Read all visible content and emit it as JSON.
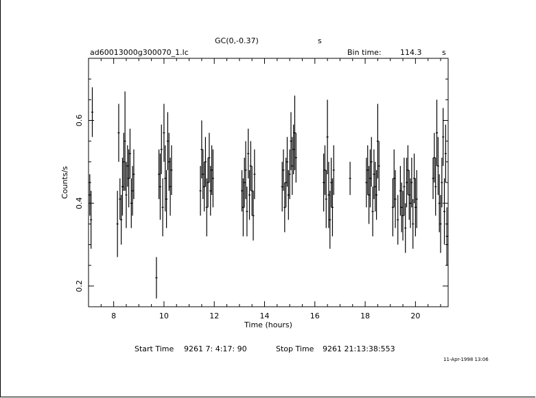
{
  "header": {
    "title": "GC(0,-0.37)",
    "title_unit": "s",
    "file_name": "ad60013000g300070_1.lc",
    "bin_time_label": "Bin time:",
    "bin_time_value": "114.3",
    "bin_time_unit": "s"
  },
  "footer": {
    "start_label": "Start Time",
    "start_value": "9261  7: 4:17: 90",
    "stop_label": "Stop Time",
    "stop_value": "9261 21:13:38:553",
    "timestamp": "11-Apr-1998 13:06"
  },
  "chart_data": {
    "type": "scatter",
    "style": "error-bars",
    "xlabel": "Time (hours)",
    "ylabel": "Counts/s",
    "xlim": [
      7.0,
      21.3
    ],
    "ylim": [
      0.15,
      0.75
    ],
    "xticks": [
      8,
      10,
      12,
      14,
      16,
      18,
      20
    ],
    "yticks": [
      0.2,
      0.4,
      0.6
    ],
    "grid": false,
    "points": [
      [
        7.05,
        0.42,
        0.05
      ],
      [
        7.1,
        0.36,
        0.07
      ],
      [
        7.15,
        0.62,
        0.06
      ],
      [
        8.15,
        0.35,
        0.08
      ],
      [
        8.2,
        0.57,
        0.07
      ],
      [
        8.25,
        0.41,
        0.05
      ],
      [
        8.3,
        0.36,
        0.06
      ],
      [
        8.35,
        0.44,
        0.07
      ],
      [
        8.4,
        0.5,
        0.07
      ],
      [
        8.45,
        0.55,
        0.12
      ],
      [
        8.5,
        0.42,
        0.08
      ],
      [
        8.55,
        0.49,
        0.05
      ],
      [
        8.6,
        0.46,
        0.07
      ],
      [
        8.65,
        0.52,
        0.06
      ],
      [
        8.7,
        0.4,
        0.06
      ],
      [
        8.75,
        0.43,
        0.06
      ],
      [
        8.8,
        0.47,
        0.06
      ],
      [
        9.7,
        0.22,
        0.05
      ],
      [
        9.8,
        0.47,
        0.06
      ],
      [
        9.85,
        0.44,
        0.08
      ],
      [
        9.9,
        0.53,
        0.06
      ],
      [
        9.95,
        0.39,
        0.07
      ],
      [
        10.0,
        0.57,
        0.07
      ],
      [
        10.05,
        0.46,
        0.08
      ],
      [
        10.1,
        0.41,
        0.07
      ],
      [
        10.15,
        0.55,
        0.07
      ],
      [
        10.2,
        0.5,
        0.07
      ],
      [
        10.25,
        0.44,
        0.07
      ],
      [
        10.3,
        0.48,
        0.06
      ],
      [
        11.45,
        0.43,
        0.06
      ],
      [
        11.5,
        0.53,
        0.07
      ],
      [
        11.55,
        0.47,
        0.06
      ],
      [
        11.6,
        0.44,
        0.06
      ],
      [
        11.65,
        0.5,
        0.06
      ],
      [
        11.7,
        0.39,
        0.07
      ],
      [
        11.75,
        0.45,
        0.06
      ],
      [
        11.8,
        0.51,
        0.06
      ],
      [
        11.85,
        0.43,
        0.06
      ],
      [
        11.9,
        0.48,
        0.06
      ],
      [
        11.95,
        0.46,
        0.07
      ],
      [
        13.1,
        0.43,
        0.05
      ],
      [
        13.15,
        0.39,
        0.07
      ],
      [
        13.2,
        0.45,
        0.06
      ],
      [
        13.25,
        0.48,
        0.07
      ],
      [
        13.3,
        0.38,
        0.06
      ],
      [
        13.35,
        0.52,
        0.06
      ],
      [
        13.4,
        0.42,
        0.06
      ],
      [
        13.45,
        0.49,
        0.06
      ],
      [
        13.5,
        0.43,
        0.06
      ],
      [
        13.55,
        0.37,
        0.06
      ],
      [
        13.6,
        0.47,
        0.06
      ],
      [
        14.7,
        0.44,
        0.06
      ],
      [
        14.75,
        0.48,
        0.05
      ],
      [
        14.8,
        0.39,
        0.06
      ],
      [
        14.85,
        0.45,
        0.06
      ],
      [
        14.9,
        0.5,
        0.06
      ],
      [
        14.95,
        0.42,
        0.06
      ],
      [
        15.0,
        0.47,
        0.06
      ],
      [
        15.05,
        0.55,
        0.07
      ],
      [
        15.1,
        0.49,
        0.07
      ],
      [
        15.15,
        0.53,
        0.06
      ],
      [
        15.2,
        0.57,
        0.09
      ],
      [
        15.25,
        0.51,
        0.06
      ],
      [
        16.35,
        0.45,
        0.07
      ],
      [
        16.4,
        0.48,
        0.06
      ],
      [
        16.45,
        0.41,
        0.07
      ],
      [
        16.5,
        0.56,
        0.09
      ],
      [
        16.55,
        0.42,
        0.08
      ],
      [
        16.6,
        0.36,
        0.07
      ],
      [
        16.65,
        0.45,
        0.06
      ],
      [
        16.7,
        0.39,
        0.07
      ],
      [
        16.75,
        0.48,
        0.06
      ],
      [
        17.4,
        0.46,
        0.04
      ],
      [
        18.05,
        0.45,
        0.06
      ],
      [
        18.1,
        0.48,
        0.06
      ],
      [
        18.15,
        0.42,
        0.07
      ],
      [
        18.2,
        0.46,
        0.07
      ],
      [
        18.25,
        0.5,
        0.06
      ],
      [
        18.3,
        0.38,
        0.06
      ],
      [
        18.35,
        0.47,
        0.06
      ],
      [
        18.4,
        0.44,
        0.06
      ],
      [
        18.45,
        0.42,
        0.06
      ],
      [
        18.5,
        0.55,
        0.09
      ],
      [
        18.55,
        0.49,
        0.06
      ],
      [
        19.1,
        0.39,
        0.07
      ],
      [
        19.15,
        0.46,
        0.07
      ],
      [
        19.2,
        0.41,
        0.07
      ],
      [
        19.3,
        0.36,
        0.06
      ],
      [
        19.4,
        0.43,
        0.06
      ],
      [
        19.45,
        0.39,
        0.06
      ],
      [
        19.5,
        0.37,
        0.06
      ],
      [
        19.55,
        0.44,
        0.07
      ],
      [
        19.6,
        0.34,
        0.06
      ],
      [
        19.65,
        0.45,
        0.06
      ],
      [
        19.7,
        0.48,
        0.06
      ],
      [
        19.75,
        0.42,
        0.06
      ],
      [
        19.8,
        0.4,
        0.06
      ],
      [
        19.85,
        0.45,
        0.06
      ],
      [
        19.9,
        0.35,
        0.06
      ],
      [
        19.95,
        0.46,
        0.06
      ],
      [
        20.0,
        0.39,
        0.07
      ],
      [
        20.05,
        0.41,
        0.07
      ],
      [
        20.7,
        0.46,
        0.05
      ],
      [
        20.75,
        0.51,
        0.06
      ],
      [
        20.8,
        0.44,
        0.07
      ],
      [
        20.85,
        0.57,
        0.08
      ],
      [
        20.9,
        0.49,
        0.07
      ],
      [
        20.95,
        0.4,
        0.07
      ],
      [
        21.0,
        0.35,
        0.07
      ],
      [
        21.05,
        0.45,
        0.06
      ],
      [
        21.1,
        0.56,
        0.07
      ],
      [
        21.15,
        0.38,
        0.08
      ],
      [
        21.2,
        0.52,
        0.07
      ],
      [
        21.25,
        0.32,
        0.07
      ]
    ]
  }
}
